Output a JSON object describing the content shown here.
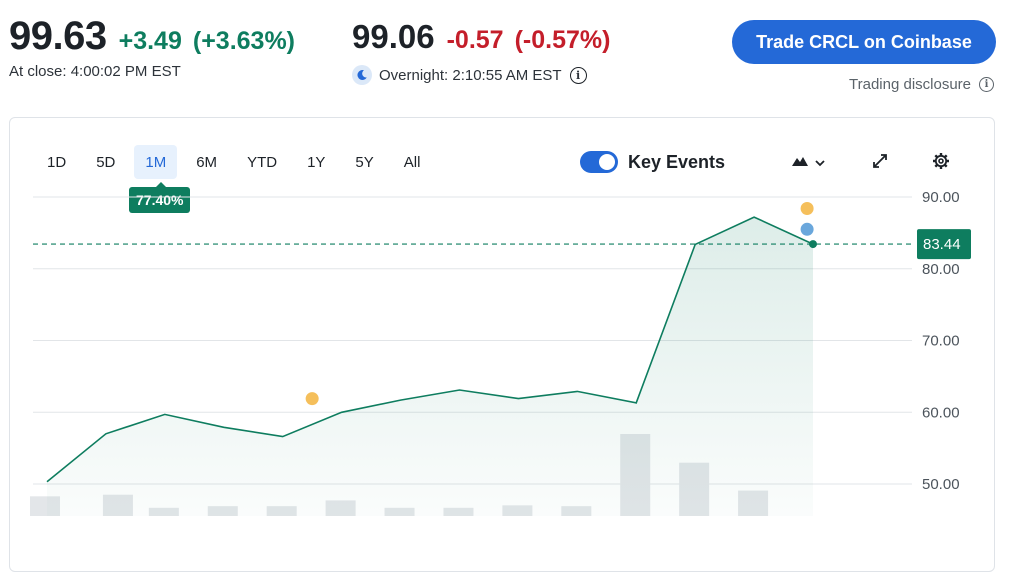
{
  "quote": {
    "price": "99.63",
    "change": "+3.49",
    "change_pct": "(+3.63%)",
    "close_label": "At close: 4:00:02 PM EST",
    "overnight_price": "99.06",
    "overnight_change": "-0.57",
    "overnight_change_pct": "(-0.57%)",
    "overnight_label": "Overnight: 2:10:55 AM EST"
  },
  "trade_button": "Trade CRCL on Coinbase",
  "disclosure": "Trading disclosure",
  "ranges": [
    "1D",
    "5D",
    "1M",
    "6M",
    "YTD",
    "1Y",
    "5Y",
    "All"
  ],
  "active_range": "1M",
  "range_change_badge": "77.40%",
  "key_events": {
    "label": "Key Events",
    "enabled": true
  },
  "icons": {
    "chart_type": "mountain-chart-icon",
    "expand": "expand-icon",
    "settings": "gear-icon",
    "info": "info-icon",
    "moon": "moon-icon"
  },
  "colors": {
    "up": "#0e7d5f",
    "down": "#c41e2a",
    "accent": "#2469d7",
    "event_dividend": "#f5bf5b",
    "event_news": "#6aa7dc",
    "volume": "#e3e6e9"
  },
  "chart_data": {
    "type": "area",
    "ylim": [
      45,
      93
    ],
    "yticks": [
      50,
      60,
      70,
      80,
      90
    ],
    "ytick_labels": [
      "50.00",
      "60.00",
      "70.00",
      "80.00",
      "90.00"
    ],
    "grid": true,
    "last_value": 83.44,
    "last_label": "83.44",
    "series": [
      {
        "values": [
          50.3,
          57.0,
          59.7,
          57.9,
          56.6,
          60.0,
          61.7,
          63.1,
          61.9,
          62.9,
          61.3,
          83.4,
          87.2,
          83.44
        ]
      }
    ],
    "volume": [
      0.24,
      0.26,
      0.1,
      0.12,
      0.12,
      0.19,
      0.1,
      0.1,
      0.13,
      0.12,
      1.0,
      0.65,
      0.31
    ],
    "events": [
      {
        "index": 4.5,
        "value": 61.9,
        "kind": "dividend"
      },
      {
        "index": 12.9,
        "value": 88.4,
        "kind": "dividend"
      },
      {
        "index": 12.9,
        "value": 85.5,
        "kind": "news"
      }
    ]
  }
}
